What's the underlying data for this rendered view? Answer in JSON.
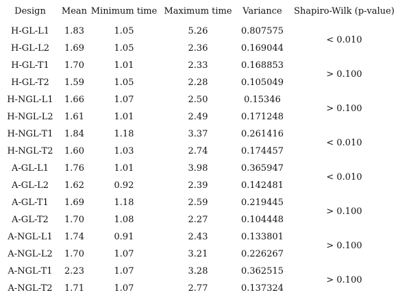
{
  "table": {
    "headers": {
      "design": "Design",
      "mean": "Mean",
      "min": "Minimum time",
      "max": "Maximum time",
      "variance": "Variance",
      "shapiro": "Shapiro-Wilk (p-value)"
    },
    "rows": [
      {
        "design": "H-GL-L1",
        "mean": "1.83",
        "min": "1.05",
        "max": "5.26",
        "variance": "0.807575"
      },
      {
        "design": "H-GL-L2",
        "mean": "1.69",
        "min": "1.05",
        "max": "2.36",
        "variance": "0.169044"
      },
      {
        "design": "H-GL-T1",
        "mean": "1.70",
        "min": "1.01",
        "max": "2.33",
        "variance": "0.168853"
      },
      {
        "design": "H-GL-T2",
        "mean": "1.59",
        "min": "1.05",
        "max": "2.28",
        "variance": "0.105049"
      },
      {
        "design": "H-NGL-L1",
        "mean": "1.66",
        "min": "1.07",
        "max": "2.50",
        "variance": "0.15346"
      },
      {
        "design": "H-NGL-L2",
        "mean": "1.61",
        "min": "1.01",
        "max": "2.49",
        "variance": "0.171248"
      },
      {
        "design": "H-NGL-T1",
        "mean": "1.84",
        "min": "1.18",
        "max": "3.37",
        "variance": "0.261416"
      },
      {
        "design": "H-NGL-T2",
        "mean": "1.60",
        "min": "1.03",
        "max": "2.74",
        "variance": "0.174457"
      },
      {
        "design": "A-GL-L1",
        "mean": "1.76",
        "min": "1.01",
        "max": "3.98",
        "variance": "0.365947"
      },
      {
        "design": "A-GL-L2",
        "mean": "1.62",
        "min": "0.92",
        "max": "2.39",
        "variance": "0.142481"
      },
      {
        "design": "A-GL-T1",
        "mean": "1.69",
        "min": "1.18",
        "max": "2.59",
        "variance": "0.219445"
      },
      {
        "design": "A-GL-T2",
        "mean": "1.70",
        "min": "1.08",
        "max": "2.27",
        "variance": "0.104448"
      },
      {
        "design": "A-NGL-L1",
        "mean": "1.74",
        "min": "0.91",
        "max": "2.43",
        "variance": "0.133801"
      },
      {
        "design": "A-NGL-L2",
        "mean": "1.70",
        "min": "1.07",
        "max": "3.21",
        "variance": "0.226267"
      },
      {
        "design": "A-NGL-T1",
        "mean": "2.23",
        "min": "1.07",
        "max": "3.28",
        "variance": "0.362515"
      },
      {
        "design": "A-NGL-T2",
        "mean": "1.71",
        "min": "1.07",
        "max": "2.77",
        "variance": "0.137324"
      }
    ],
    "shapiro_groups": [
      {
        "value": "< 0.010"
      },
      {
        "value": "> 0.100"
      },
      {
        "value": "> 0.100"
      },
      {
        "value": "< 0.010"
      },
      {
        "value": "< 0.010"
      },
      {
        "value": "> 0.100"
      },
      {
        "value": "> 0.100"
      },
      {
        "value": "> 0.100"
      }
    ]
  }
}
